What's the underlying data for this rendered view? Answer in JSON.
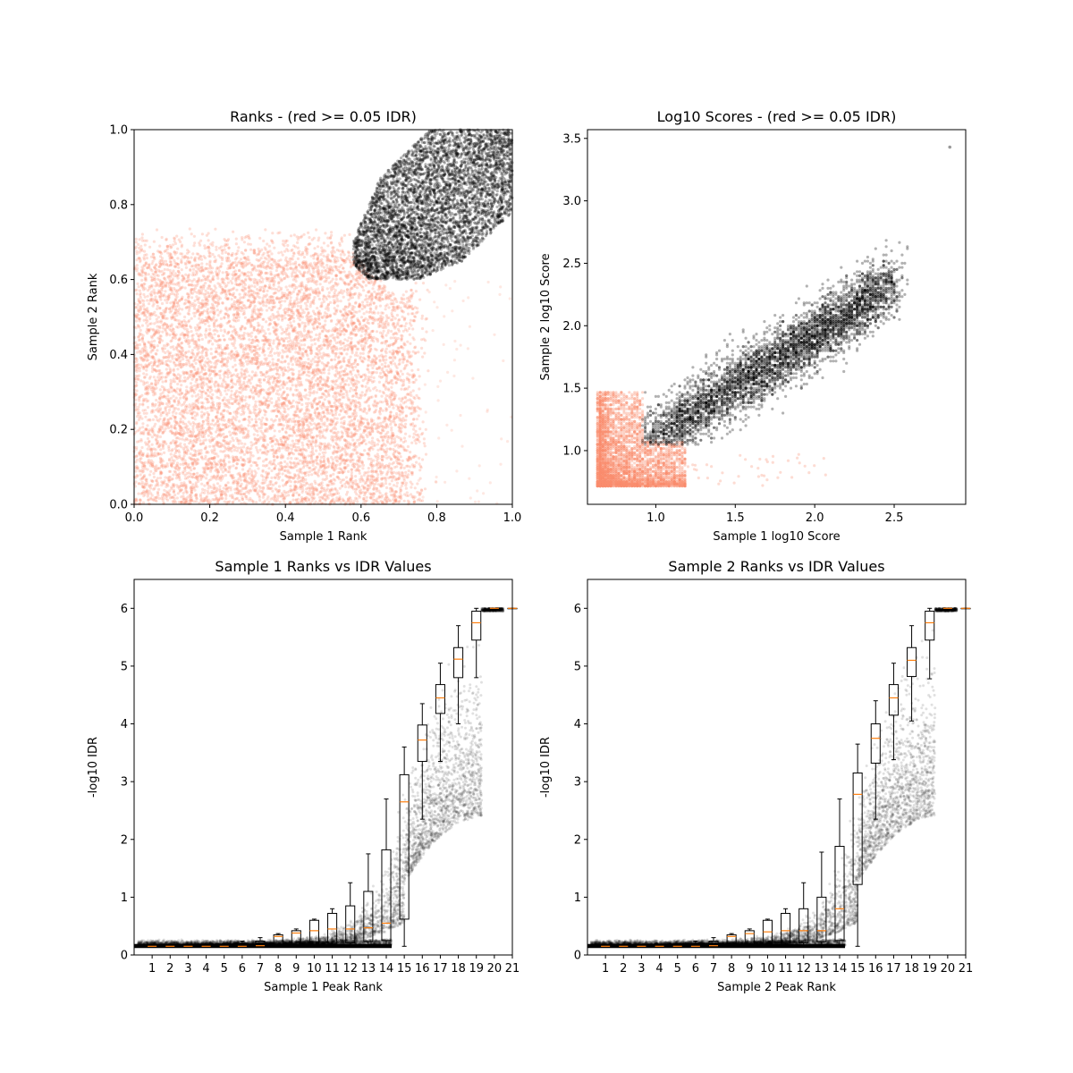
{
  "chart_data": [
    {
      "type": "scatter",
      "title": "Ranks - (red >= 0.05 IDR)",
      "xlabel": "Sample 1 Rank",
      "ylabel": "Sample 2 Rank",
      "xlim": [
        0,
        1
      ],
      "ylim": [
        0,
        1
      ],
      "xticks": [
        "0.0",
        "0.2",
        "0.4",
        "0.6",
        "0.8",
        "1.0"
      ],
      "yticks": [
        "0.0",
        "0.2",
        "0.4",
        "0.6",
        "0.8",
        "1.0"
      ],
      "grid": false,
      "colors": {
        "above_threshold": "#fa8c6e",
        "below_threshold": "#000000"
      },
      "series": [
        {
          "description_color": "#fa8c6e",
          "x_range": [
            0,
            0.75
          ],
          "y_range": [
            0,
            0.72
          ]
        },
        {
          "description_color": "#000000",
          "x_range": [
            0.6,
            1.0
          ],
          "y_range": [
            0.6,
            1.0
          ]
        }
      ]
    },
    {
      "type": "scatter",
      "title": "Log10 Scores - (red >= 0.05 IDR)",
      "xlabel": "Sample 1 log10 Score",
      "ylabel": "Sample 2 log10 Score",
      "xlim": [
        0.57,
        2.95
      ],
      "ylim": [
        0.57,
        3.57
      ],
      "xticks": [
        "1.0",
        "1.5",
        "2.0",
        "2.5"
      ],
      "yticks": [
        "1.0",
        "1.5",
        "2.0",
        "2.5",
        "3.0",
        "3.5"
      ],
      "grid": false,
      "colors": {
        "above_threshold": "#fa8c6e",
        "below_threshold": "#000000"
      },
      "outlier": {
        "x": 2.85,
        "y": 3.43
      }
    },
    {
      "type": "box",
      "title": "Sample 1 Ranks vs IDR Values",
      "xlabel": "Sample 1 Peak Rank",
      "ylabel": "-log10 IDR",
      "xlim": [
        0,
        21
      ],
      "ylim": [
        0,
        6.5
      ],
      "xticks": [
        "1",
        "2",
        "3",
        "4",
        "5",
        "6",
        "7",
        "8",
        "9",
        "10",
        "11",
        "12",
        "13",
        "14",
        "15",
        "16",
        "17",
        "18",
        "19",
        "20",
        "21"
      ],
      "yticks": [
        "0",
        "1",
        "2",
        "3",
        "4",
        "5",
        "6"
      ],
      "grid": false,
      "median_color": "#ff7f0e",
      "boxes": [
        {
          "x": 1,
          "q1": 0.15,
          "median": 0.15,
          "q3": 0.15,
          "lo": 0.15,
          "hi": 0.15
        },
        {
          "x": 2,
          "q1": 0.15,
          "median": 0.15,
          "q3": 0.15,
          "lo": 0.15,
          "hi": 0.15
        },
        {
          "x": 3,
          "q1": 0.15,
          "median": 0.15,
          "q3": 0.15,
          "lo": 0.15,
          "hi": 0.15
        },
        {
          "x": 4,
          "q1": 0.15,
          "median": 0.15,
          "q3": 0.15,
          "lo": 0.15,
          "hi": 0.15
        },
        {
          "x": 5,
          "q1": 0.15,
          "median": 0.15,
          "q3": 0.18,
          "lo": 0.15,
          "hi": 0.2
        },
        {
          "x": 6,
          "q1": 0.15,
          "median": 0.15,
          "q3": 0.2,
          "lo": 0.15,
          "hi": 0.24
        },
        {
          "x": 7,
          "q1": 0.15,
          "median": 0.16,
          "q3": 0.24,
          "lo": 0.15,
          "hi": 0.3
        },
        {
          "x": 8,
          "q1": 0.16,
          "median": 0.32,
          "q3": 0.35,
          "lo": 0.15,
          "hi": 0.37
        },
        {
          "x": 9,
          "q1": 0.17,
          "median": 0.38,
          "q3": 0.42,
          "lo": 0.15,
          "hi": 0.45
        },
        {
          "x": 10,
          "q1": 0.18,
          "median": 0.42,
          "q3": 0.6,
          "lo": 0.15,
          "hi": 0.62
        },
        {
          "x": 11,
          "q1": 0.2,
          "median": 0.45,
          "q3": 0.72,
          "lo": 0.15,
          "hi": 0.8
        },
        {
          "x": 12,
          "q1": 0.21,
          "median": 0.45,
          "q3": 0.85,
          "lo": 0.15,
          "hi": 1.25
        },
        {
          "x": 13,
          "q1": 0.23,
          "median": 0.47,
          "q3": 1.1,
          "lo": 0.15,
          "hi": 1.75
        },
        {
          "x": 14,
          "q1": 0.25,
          "median": 0.55,
          "q3": 1.82,
          "lo": 0.15,
          "hi": 2.7
        },
        {
          "x": 15,
          "q1": 0.62,
          "median": 2.65,
          "q3": 3.12,
          "lo": 0.15,
          "hi": 3.6
        },
        {
          "x": 16,
          "q1": 3.35,
          "median": 3.72,
          "q3": 3.98,
          "lo": 2.35,
          "hi": 4.35
        },
        {
          "x": 17,
          "q1": 4.18,
          "median": 4.45,
          "q3": 4.68,
          "lo": 3.35,
          "hi": 5.05
        },
        {
          "x": 18,
          "q1": 4.8,
          "median": 5.12,
          "q3": 5.32,
          "lo": 4.0,
          "hi": 5.7
        },
        {
          "x": 19,
          "q1": 5.45,
          "median": 5.75,
          "q3": 5.95,
          "lo": 4.8,
          "hi": 6.0
        },
        {
          "x": 20,
          "q1": 6.0,
          "median": 6.0,
          "q3": 6.0,
          "lo": 6.0,
          "hi": 6.0
        },
        {
          "x": 21,
          "q1": 6.0,
          "median": 6.0,
          "q3": 6.0,
          "lo": 6.0,
          "hi": 6.0
        }
      ]
    },
    {
      "type": "box",
      "title": "Sample 2 Ranks vs IDR Values",
      "xlabel": "Sample 2 Peak Rank",
      "ylabel": "-log10 IDR",
      "xlim": [
        0,
        21
      ],
      "ylim": [
        0,
        6.5
      ],
      "xticks": [
        "1",
        "2",
        "3",
        "4",
        "5",
        "6",
        "7",
        "8",
        "9",
        "10",
        "11",
        "12",
        "13",
        "14",
        "15",
        "16",
        "17",
        "18",
        "19",
        "20",
        "21"
      ],
      "yticks": [
        "0",
        "1",
        "2",
        "3",
        "4",
        "5",
        "6"
      ],
      "grid": false,
      "median_color": "#ff7f0e",
      "boxes": [
        {
          "x": 1,
          "q1": 0.15,
          "median": 0.15,
          "q3": 0.15,
          "lo": 0.15,
          "hi": 0.15
        },
        {
          "x": 2,
          "q1": 0.15,
          "median": 0.15,
          "q3": 0.15,
          "lo": 0.15,
          "hi": 0.15
        },
        {
          "x": 3,
          "q1": 0.15,
          "median": 0.15,
          "q3": 0.15,
          "lo": 0.15,
          "hi": 0.15
        },
        {
          "x": 4,
          "q1": 0.15,
          "median": 0.15,
          "q3": 0.15,
          "lo": 0.15,
          "hi": 0.15
        },
        {
          "x": 5,
          "q1": 0.15,
          "median": 0.15,
          "q3": 0.17,
          "lo": 0.15,
          "hi": 0.2
        },
        {
          "x": 6,
          "q1": 0.15,
          "median": 0.15,
          "q3": 0.2,
          "lo": 0.15,
          "hi": 0.24
        },
        {
          "x": 7,
          "q1": 0.15,
          "median": 0.16,
          "q3": 0.24,
          "lo": 0.15,
          "hi": 0.3
        },
        {
          "x": 8,
          "q1": 0.16,
          "median": 0.32,
          "q3": 0.35,
          "lo": 0.15,
          "hi": 0.37
        },
        {
          "x": 9,
          "q1": 0.17,
          "median": 0.37,
          "q3": 0.42,
          "lo": 0.15,
          "hi": 0.45
        },
        {
          "x": 10,
          "q1": 0.18,
          "median": 0.4,
          "q3": 0.6,
          "lo": 0.15,
          "hi": 0.62
        },
        {
          "x": 11,
          "q1": 0.2,
          "median": 0.42,
          "q3": 0.72,
          "lo": 0.15,
          "hi": 0.8
        },
        {
          "x": 12,
          "q1": 0.21,
          "median": 0.42,
          "q3": 0.8,
          "lo": 0.15,
          "hi": 1.25
        },
        {
          "x": 13,
          "q1": 0.23,
          "median": 0.42,
          "q3": 1.0,
          "lo": 0.15,
          "hi": 1.78
        },
        {
          "x": 14,
          "q1": 0.25,
          "median": 0.8,
          "q3": 1.88,
          "lo": 0.15,
          "hi": 2.7
        },
        {
          "x": 15,
          "q1": 1.22,
          "median": 2.78,
          "q3": 3.15,
          "lo": 0.15,
          "hi": 3.65
        },
        {
          "x": 16,
          "q1": 3.32,
          "median": 3.75,
          "q3": 4.0,
          "lo": 2.35,
          "hi": 4.4
        },
        {
          "x": 17,
          "q1": 4.15,
          "median": 4.45,
          "q3": 4.68,
          "lo": 3.38,
          "hi": 5.05
        },
        {
          "x": 18,
          "q1": 4.82,
          "median": 5.1,
          "q3": 5.32,
          "lo": 4.05,
          "hi": 5.7
        },
        {
          "x": 19,
          "q1": 5.45,
          "median": 5.75,
          "q3": 5.95,
          "lo": 4.78,
          "hi": 6.0
        },
        {
          "x": 20,
          "q1": 6.0,
          "median": 6.0,
          "q3": 6.0,
          "lo": 6.0,
          "hi": 6.0
        },
        {
          "x": 21,
          "q1": 6.0,
          "median": 6.0,
          "q3": 6.0,
          "lo": 6.0,
          "hi": 6.0
        }
      ]
    }
  ]
}
